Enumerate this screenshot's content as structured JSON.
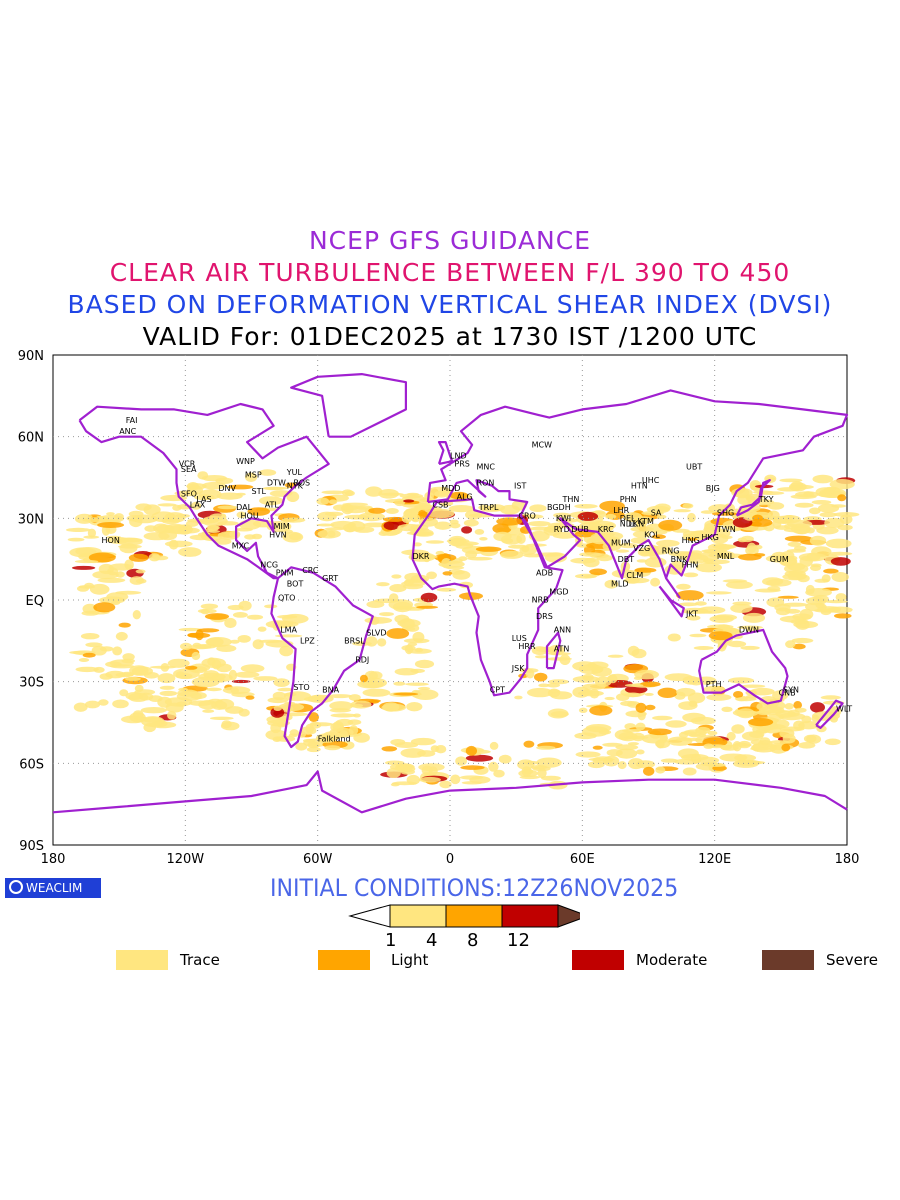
{
  "titles": {
    "line1": "NCEP GFS GUIDANCE",
    "line2": "CLEAR AIR TURBULENCE BETWEEN F/L 390 TO 450",
    "line3": "BASED ON DEFORMATION VERTICAL SHEAR INDEX (DVSI)",
    "line4": "VALID For: 01DEC2025 at 1730 IST /1200 UTC"
  },
  "axes": {
    "lat_labels": [
      "90N",
      "60N",
      "30N",
      "EQ",
      "30S",
      "60S",
      "90S"
    ],
    "lon_labels": [
      "180",
      "120W",
      "60W",
      "0",
      "60E",
      "120E",
      "180"
    ]
  },
  "stations": [
    {
      "name": "ANC",
      "lon": -150,
      "lat": 61
    },
    {
      "name": "FAI",
      "lon": -147,
      "lat": 65
    },
    {
      "name": "VCR",
      "lon": -123,
      "lat": 49
    },
    {
      "name": "SEA",
      "lon": -122,
      "lat": 47
    },
    {
      "name": "WNP",
      "lon": -97,
      "lat": 50
    },
    {
      "name": "MSP",
      "lon": -93,
      "lat": 45
    },
    {
      "name": "DTW",
      "lon": -83,
      "lat": 42
    },
    {
      "name": "YUL",
      "lon": -74,
      "lat": 46
    },
    {
      "name": "BOS",
      "lon": -71,
      "lat": 42
    },
    {
      "name": "NYK",
      "lon": -74,
      "lat": 41
    },
    {
      "name": "SFO",
      "lon": -122,
      "lat": 38
    },
    {
      "name": "LAS",
      "lon": -115,
      "lat": 36
    },
    {
      "name": "LAX",
      "lon": -118,
      "lat": 34
    },
    {
      "name": "DNV",
      "lon": -105,
      "lat": 40
    },
    {
      "name": "STL",
      "lon": -90,
      "lat": 39
    },
    {
      "name": "ATL",
      "lon": -84,
      "lat": 34
    },
    {
      "name": "DAL",
      "lon": -97,
      "lat": 33
    },
    {
      "name": "HOU",
      "lon": -95,
      "lat": 30
    },
    {
      "name": "MIM",
      "lon": -80,
      "lat": 26
    },
    {
      "name": "HVN",
      "lon": -82,
      "lat": 23
    },
    {
      "name": "HON",
      "lon": -158,
      "lat": 21
    },
    {
      "name": "MXC",
      "lon": -99,
      "lat": 19
    },
    {
      "name": "NCG",
      "lon": -86,
      "lat": 12
    },
    {
      "name": "PNM",
      "lon": -79,
      "lat": 9
    },
    {
      "name": "CRC",
      "lon": -67,
      "lat": 10
    },
    {
      "name": "BOT",
      "lon": -74,
      "lat": 5
    },
    {
      "name": "QTO",
      "lon": -78,
      "lat": -0.2
    },
    {
      "name": "GRT",
      "lon": -58,
      "lat": 7
    },
    {
      "name": "LMA",
      "lon": -77,
      "lat": -12
    },
    {
      "name": "LPZ",
      "lon": -68,
      "lat": -16
    },
    {
      "name": "BRSL",
      "lon": -48,
      "lat": -16
    },
    {
      "name": "SLVD",
      "lon": -38,
      "lat": -13
    },
    {
      "name": "RDJ",
      "lon": -43,
      "lat": -23
    },
    {
      "name": "STO",
      "lon": -71,
      "lat": -33
    },
    {
      "name": "BNA",
      "lon": -58,
      "lat": -34
    },
    {
      "name": "Falkland",
      "lon": -60,
      "lat": -52
    },
    {
      "name": "LND",
      "lon": 0,
      "lat": 52
    },
    {
      "name": "PRS",
      "lon": 2,
      "lat": 49
    },
    {
      "name": "MNC",
      "lon": 12,
      "lat": 48
    },
    {
      "name": "MDD",
      "lon": -4,
      "lat": 40
    },
    {
      "name": "ALG",
      "lon": 3,
      "lat": 37
    },
    {
      "name": "RON",
      "lon": 12,
      "lat": 42
    },
    {
      "name": "IST",
      "lon": 29,
      "lat": 41
    },
    {
      "name": "TRPL",
      "lon": 13,
      "lat": 33
    },
    {
      "name": "CSB",
      "lon": -8,
      "lat": 34
    },
    {
      "name": "CRO",
      "lon": 31,
      "lat": 30
    },
    {
      "name": "MCW",
      "lon": 37,
      "lat": 56
    },
    {
      "name": "BGDH",
      "lon": 44,
      "lat": 33
    },
    {
      "name": "KWI",
      "lon": 48,
      "lat": 29
    },
    {
      "name": "THN",
      "lon": 51,
      "lat": 36
    },
    {
      "name": "RYD",
      "lon": 47,
      "lat": 25
    },
    {
      "name": "DUB",
      "lon": 55,
      "lat": 25
    },
    {
      "name": "KRC",
      "lon": 67,
      "lat": 25
    },
    {
      "name": "DKR",
      "lon": -17,
      "lat": 15
    },
    {
      "name": "ADB",
      "lon": 39,
      "lat": 9
    },
    {
      "name": "MGD",
      "lon": 45,
      "lat": 2
    },
    {
      "name": "NRB",
      "lon": 37,
      "lat": -1
    },
    {
      "name": "DRS",
      "lon": 39,
      "lat": -7
    },
    {
      "name": "LUS",
      "lon": 28,
      "lat": -15
    },
    {
      "name": "HRR",
      "lon": 31,
      "lat": -18
    },
    {
      "name": "ANN",
      "lon": 47,
      "lat": -12
    },
    {
      "name": "ATN",
      "lon": 47,
      "lat": -19
    },
    {
      "name": "JSK",
      "lon": 28,
      "lat": -26
    },
    {
      "name": "CPT",
      "lon": 18,
      "lat": -34
    },
    {
      "name": "DEL",
      "lon": 77,
      "lat": 29
    },
    {
      "name": "LHR",
      "lon": 74,
      "lat": 32
    },
    {
      "name": "PHN",
      "lon": 77,
      "lat": 36
    },
    {
      "name": "KTM",
      "lon": 85,
      "lat": 28
    },
    {
      "name": "NDL",
      "lon": 77,
      "lat": 27
    },
    {
      "name": "LKN",
      "lon": 81,
      "lat": 27
    },
    {
      "name": "SA",
      "lon": 91,
      "lat": 31
    },
    {
      "name": "MUM",
      "lon": 73,
      "lat": 20
    },
    {
      "name": "KOL",
      "lon": 88,
      "lat": 23
    },
    {
      "name": "VZG",
      "lon": 83,
      "lat": 18
    },
    {
      "name": "DBT",
      "lon": 76,
      "lat": 14
    },
    {
      "name": "CLM",
      "lon": 80,
      "lat": 8
    },
    {
      "name": "MLD",
      "lon": 73,
      "lat": 5
    },
    {
      "name": "HTN",
      "lon": 82,
      "lat": 41
    },
    {
      "name": "UHC",
      "lon": 87,
      "lat": 43
    },
    {
      "name": "UBT",
      "lon": 107,
      "lat": 48
    },
    {
      "name": "BJG",
      "lon": 116,
      "lat": 40
    },
    {
      "name": "SHG",
      "lon": 121,
      "lat": 31
    },
    {
      "name": "TKY",
      "lon": 140,
      "lat": 36
    },
    {
      "name": "TWN",
      "lon": 121,
      "lat": 25
    },
    {
      "name": "HKG",
      "lon": 114,
      "lat": 22
    },
    {
      "name": "HNG",
      "lon": 105,
      "lat": 21
    },
    {
      "name": "RNG",
      "lon": 96,
      "lat": 17
    },
    {
      "name": "BNK",
      "lon": 100,
      "lat": 14
    },
    {
      "name": "PHN",
      "lon": 105,
      "lat": 12
    },
    {
      "name": "MNL",
      "lon": 121,
      "lat": 15
    },
    {
      "name": "GUM",
      "lon": 145,
      "lat": 14
    },
    {
      "name": "JKT",
      "lon": 107,
      "lat": -6
    },
    {
      "name": "DWN",
      "lon": 131,
      "lat": -12
    },
    {
      "name": "PTH",
      "lon": 116,
      "lat": -32
    },
    {
      "name": "SYN",
      "lon": 151,
      "lat": -34
    },
    {
      "name": "CNB",
      "lon": 149,
      "lat": -35
    },
    {
      "name": "WLT",
      "lon": 175,
      "lat": -41
    }
  ],
  "footer": {
    "logo_text": "WEACLIM",
    "initial_conditions": "INITIAL CONDITIONS:12Z26NOV2025"
  },
  "colorbar": {
    "thresholds": [
      "1",
      "4",
      "8",
      "12"
    ],
    "colors": [
      "#ffe680",
      "#ffa500",
      "#c00000",
      "#6b3a2a"
    ]
  },
  "legend": [
    {
      "label": "Trace",
      "color": "#ffe680"
    },
    {
      "label": "Light",
      "color": "#ffa500"
    },
    {
      "label": "Moderate",
      "color": "#c00000"
    },
    {
      "label": "Severe",
      "color": "#6b3a2a"
    }
  ],
  "colors": {
    "coastline": "#a020d0",
    "title1": "#9b2bd6",
    "title2": "#e0146e",
    "title3": "#2046e6"
  }
}
